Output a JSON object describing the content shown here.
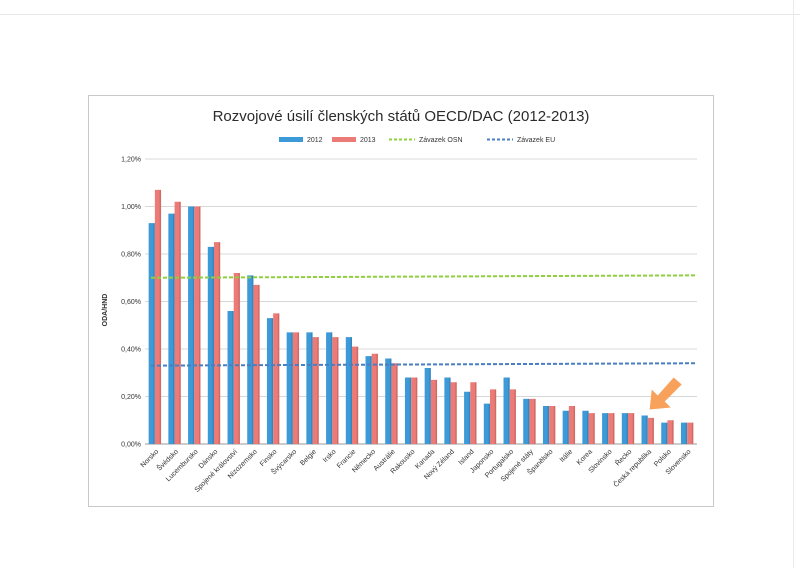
{
  "chart_data": {
    "type": "bar",
    "title": "Rozvojové úsilí členských států OECD/DAC (2012-2013)",
    "xlabel": "",
    "ylabel": "ODA/HND",
    "ylim": [
      0,
      1.2
    ],
    "yticks": [
      "0,00%",
      "0,20%",
      "0,40%",
      "0,60%",
      "0,80%",
      "1,00%",
      "1,20%"
    ],
    "grid": true,
    "legend_position": "top",
    "categories": [
      "Norsko",
      "Švédsko",
      "Lucembursko",
      "Dánsko",
      "Spojené království",
      "Nizozemsko",
      "Finsko",
      "Švýcarsko",
      "Belgie",
      "Irsko",
      "Francie",
      "Německo",
      "Austrálie",
      "Rakousko",
      "Kanada",
      "Nový Zéland",
      "Island",
      "Japonsko",
      "Portugalsko",
      "Spojené státy",
      "Španělsko",
      "Itálie",
      "Korea",
      "Slovinsko",
      "Řecko",
      "Česká republika",
      "Polsko",
      "Slovensko"
    ],
    "series": [
      {
        "name": "2012",
        "color": "#3d9ad8",
        "values": [
          0.93,
          0.97,
          1.0,
          0.83,
          0.56,
          0.71,
          0.53,
          0.47,
          0.47,
          0.47,
          0.45,
          0.37,
          0.36,
          0.28,
          0.32,
          0.28,
          0.22,
          0.17,
          0.28,
          0.19,
          0.16,
          0.14,
          0.14,
          0.13,
          0.13,
          0.12,
          0.09,
          0.09
        ]
      },
      {
        "name": "2013",
        "color": "#ec7a76",
        "values": [
          1.07,
          1.02,
          1.0,
          0.85,
          0.72,
          0.67,
          0.55,
          0.47,
          0.45,
          0.45,
          0.41,
          0.38,
          0.34,
          0.28,
          0.27,
          0.26,
          0.26,
          0.23,
          0.23,
          0.19,
          0.16,
          0.16,
          0.13,
          0.13,
          0.13,
          0.11,
          0.1,
          0.09
        ]
      }
    ],
    "reference_lines": [
      {
        "name": "Závazek OSN",
        "color": "#8fd13d",
        "start": 0.7,
        "end": 0.71
      },
      {
        "name": "Závazek EU",
        "color": "#4a7ec3",
        "start": 0.33,
        "end": 0.34
      }
    ],
    "annotation": {
      "type": "arrow",
      "color": "#f7a15b",
      "target": "Česká republika"
    }
  }
}
